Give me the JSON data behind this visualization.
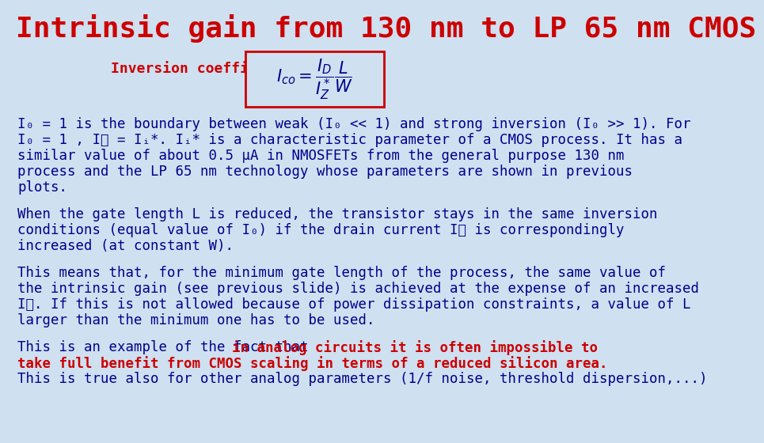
{
  "title": "Intrinsic gain from 130 nm to LP 65 nm CMOS",
  "title_color": "#cc0000",
  "title_fontsize": 26,
  "background_color": "#cfe0f0",
  "inversion_label": "Inversion coefficient",
  "inversion_label_color": "#cc0000",
  "inversion_label_fontsize": 13,
  "body_fontsize": 12.5,
  "body_color": "#00008b",
  "red_color": "#cc0000",
  "para1_lines": [
    "I₀ = 1 is the boundary between weak (I₀ << 1) and strong inversion (I₀ >> 1). For",
    "I₀ = 1 , Iᴅ = Iᵢ*. Iᵢ* is a characteristic parameter of a CMOS process. It has a",
    "similar value of about 0.5 μA in NMOSFETs from the general purpose 130 nm",
    "process and the LP 65 nm technology whose parameters are shown in previous",
    "plots."
  ],
  "para2_lines": [
    "When the gate length L is reduced, the transistor stays in the same inversion",
    "conditions (equal value of I₀) if the drain current Iᴅ is correspondingly",
    "increased (at constant W)."
  ],
  "para3_lines": [
    "This means that, for the minimum gate length of the process, the same value of",
    "the intrinsic gain (see previous slide) is achieved at the expense of an increased",
    "Iᴅ. If this is not allowed because of power dissipation constraints, a value of L",
    "larger than the minimum one has to be used."
  ],
  "para4_prefix": "This is an example of the fact that ",
  "para4_red1": "in analog circuits it is often impossible to",
  "para4_red2": "take full benefit from CMOS scaling in terms of a reduced silicon area.",
  "para4_suffix": "This is true also for other analog parameters (1/f noise, threshold dispersion,...)"
}
